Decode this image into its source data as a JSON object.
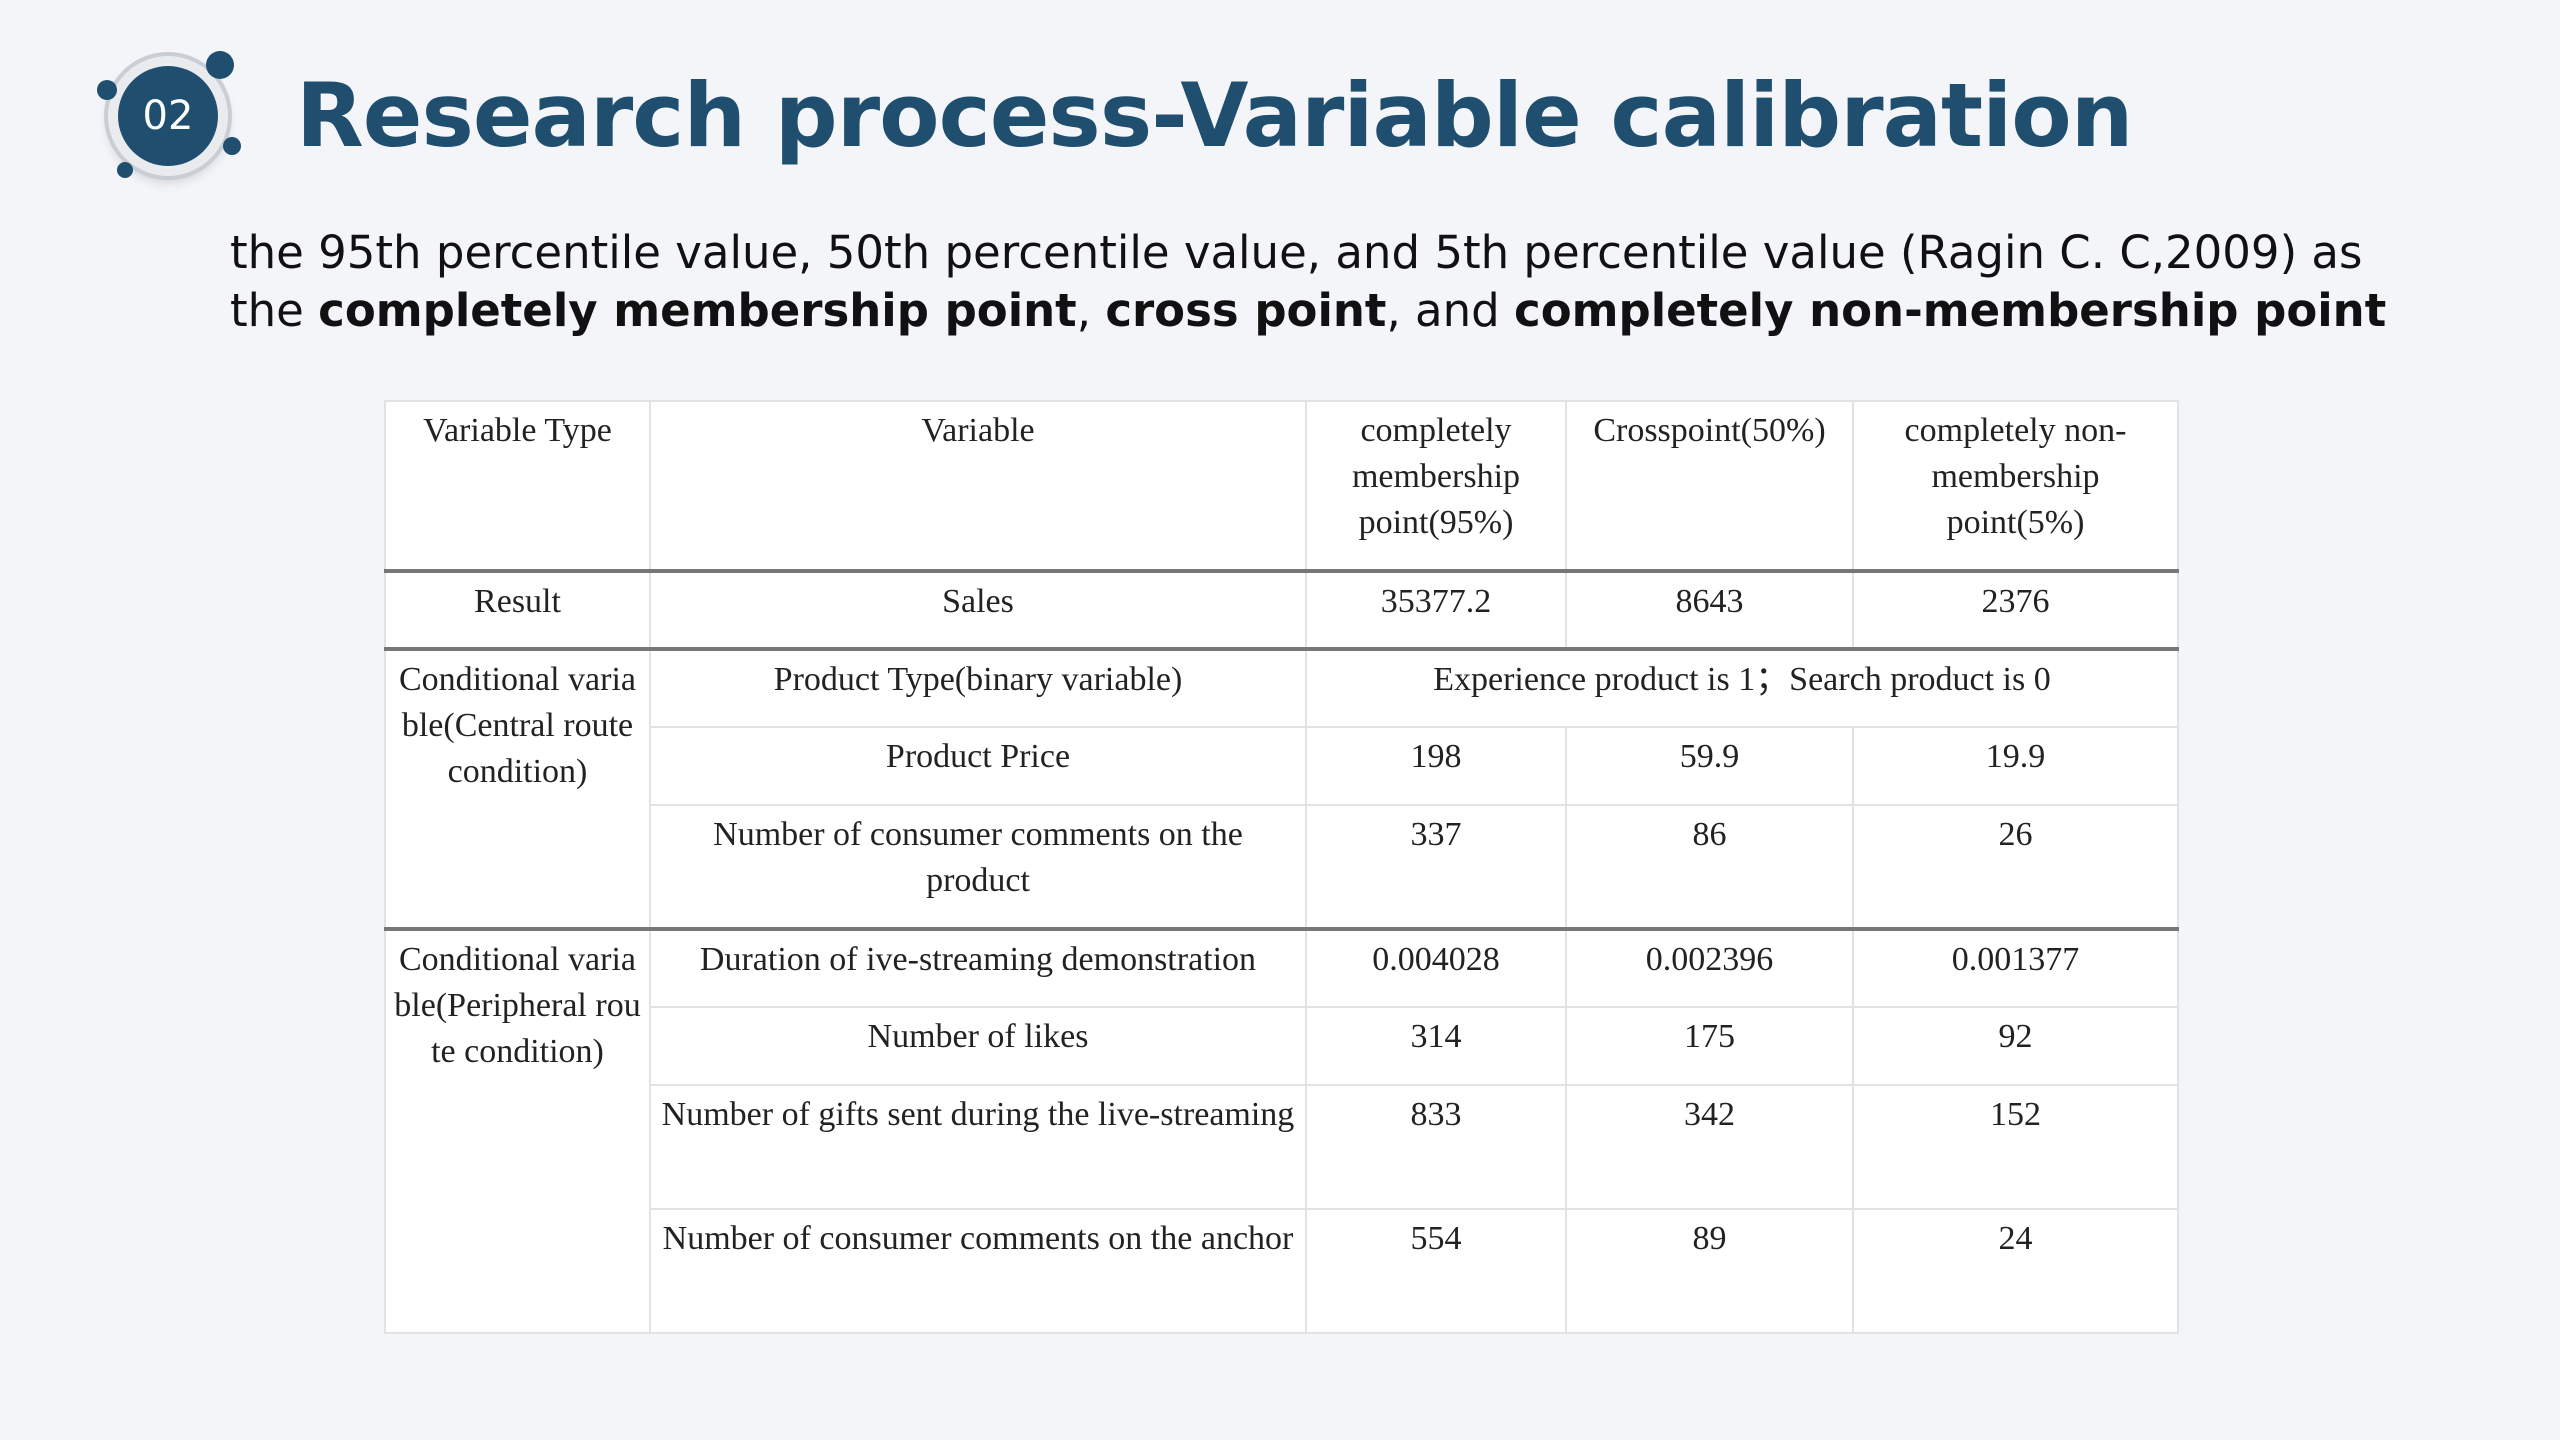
{
  "header": {
    "number": "02",
    "title": "Research process-Variable calibration"
  },
  "subtitle": [
    [
      {
        "text": "the 95th percentile value, 50th percentile value, and 5th percentile value (Ragin C. C,2009) as",
        "bold": false
      }
    ],
    [
      {
        "text": "the ",
        "bold": false
      },
      {
        "text": "completely membership point",
        "bold": true
      },
      {
        "text": ", ",
        "bold": false
      },
      {
        "text": "cross point",
        "bold": true
      },
      {
        "text": ", and ",
        "bold": false
      },
      {
        "text": "completely non-membership point",
        "bold": true
      }
    ]
  ],
  "table": {
    "header": [
      "Variable Type",
      "Variable",
      "completely membership point(95%)",
      "Crosspoint(50%)",
      "completely non-membership point(5%)"
    ],
    "groups": [
      {
        "type": "Result",
        "rows": [
          {
            "variable": "Sales",
            "values": [
              "35377.2",
              "8643",
              "2376"
            ]
          }
        ]
      },
      {
        "type": "Conditional variable(Central route condition)",
        "rows": [
          {
            "variable": "Product Type(binary variable)",
            "note": "Experience product is 1；Search product is 0"
          },
          {
            "variable": "Product Price",
            "values": [
              "198",
              "59.9",
              "19.9"
            ]
          },
          {
            "variable": "Number of consumer comments on the product",
            "values": [
              "337",
              "86",
              "26"
            ]
          }
        ]
      },
      {
        "type": "Conditional variable(Peripheral route condition)",
        "rows": [
          {
            "variable": "Duration of ive-streaming demonstration",
            "values": [
              "0.004028",
              "0.002396",
              "0.001377"
            ]
          },
          {
            "variable": "Number of likes",
            "values": [
              "314",
              "175",
              "92"
            ]
          },
          {
            "variable": "Number of gifts sent during the live-streaming",
            "values": [
              "833",
              "342",
              "152"
            ]
          },
          {
            "variable": "Number of consumer comments on the anchor",
            "values": [
              "554",
              "89",
              "24"
            ]
          }
        ]
      }
    ]
  }
}
